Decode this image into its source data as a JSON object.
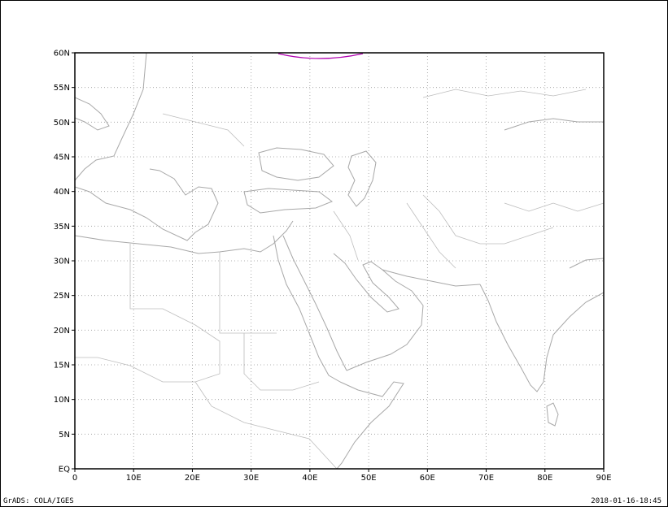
{
  "map": {
    "lat_labels": [
      "EQ",
      "5N",
      "10N",
      "15N",
      "20N",
      "25N",
      "30N",
      "35N",
      "40N",
      "45N",
      "50N",
      "55N",
      "60N"
    ],
    "lon_labels": [
      "0",
      "10E",
      "20E",
      "30E",
      "40E",
      "50E",
      "60E",
      "70E",
      "80E",
      "90E"
    ],
    "lon_range": [
      0,
      90
    ],
    "lat_range": [
      0,
      60
    ],
    "grid": true,
    "grid_style": "dotted",
    "colors": {
      "coast": "#a8a8a8",
      "border": "#a8a8a8",
      "grid": "#9a9a9a",
      "contour": "#b000b0"
    }
  },
  "footer": {
    "credit": "GrADS: COLA/IGES",
    "timestamp": "2018-01-16-18:45"
  }
}
